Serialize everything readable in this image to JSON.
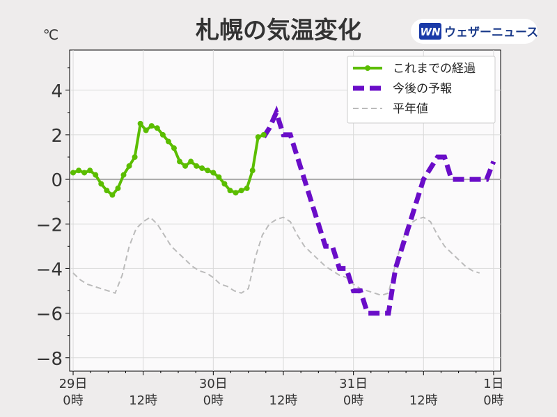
{
  "chart_data": {
    "type": "line",
    "title": "札幌の気温変化",
    "ylabel": "℃",
    "xlabel": "",
    "ylim": [
      -8.6,
      5.8
    ],
    "xlim": [
      -0.5,
      61
    ],
    "yticks": [
      4,
      2,
      0,
      -2,
      -4,
      -6,
      -8
    ],
    "ytick_labels": [
      "4",
      "2",
      "0",
      "−2",
      "−4",
      "−6",
      "−8"
    ],
    "xticks": [
      {
        "x": 0,
        "line1": "29日",
        "line2": "0時"
      },
      {
        "x": 10,
        "line1": "",
        "line2": "12時"
      },
      {
        "x": 20,
        "line1": "30日",
        "line2": "0時"
      },
      {
        "x": 30,
        "line1": "",
        "line2": "12時"
      },
      {
        "x": 40,
        "line1": "31日",
        "line2": "0時"
      },
      {
        "x": 50,
        "line1": "",
        "line2": "12時"
      },
      {
        "x": 60,
        "line1": "1日",
        "line2": "0時"
      }
    ],
    "grid": true,
    "legend_position": "top-right",
    "series": [
      {
        "name": "これまでの経過",
        "color": "#5bbd00",
        "style": "solid-markers",
        "points": [
          [
            0,
            0.3
          ],
          [
            0.8,
            0.4
          ],
          [
            1.6,
            0.3
          ],
          [
            2.4,
            0.4
          ],
          [
            3.2,
            0.2
          ],
          [
            4,
            -0.2
          ],
          [
            4.8,
            -0.5
          ],
          [
            5.6,
            -0.7
          ],
          [
            6.4,
            -0.4
          ],
          [
            7.2,
            0.2
          ],
          [
            8,
            0.6
          ],
          [
            8.8,
            1.0
          ],
          [
            9.6,
            2.5
          ],
          [
            10.4,
            2.2
          ],
          [
            11.2,
            2.4
          ],
          [
            12,
            2.3
          ],
          [
            12.8,
            2.0
          ],
          [
            13.6,
            1.7
          ],
          [
            14.4,
            1.4
          ],
          [
            15.2,
            0.8
          ],
          [
            16,
            0.6
          ],
          [
            16.8,
            0.8
          ],
          [
            17.6,
            0.6
          ],
          [
            18.4,
            0.5
          ],
          [
            19.2,
            0.4
          ],
          [
            20,
            0.3
          ],
          [
            20.8,
            0.1
          ],
          [
            21.6,
            -0.2
          ],
          [
            22.4,
            -0.5
          ],
          [
            23.2,
            -0.6
          ],
          [
            24,
            -0.5
          ],
          [
            24.8,
            -0.4
          ],
          [
            25.6,
            0.4
          ],
          [
            26.4,
            1.9
          ],
          [
            27.2,
            2.0
          ]
        ]
      },
      {
        "name": "今後の予報",
        "color": "#6a0dc8",
        "style": "dashed-thick",
        "points": [
          [
            27.2,
            1.9
          ],
          [
            28,
            2.3
          ],
          [
            29,
            3.0
          ],
          [
            30,
            2.0
          ],
          [
            31,
            2.0
          ],
          [
            32,
            1.0
          ],
          [
            33,
            0.0
          ],
          [
            34,
            -1.0
          ],
          [
            35,
            -2.0
          ],
          [
            36,
            -3.0
          ],
          [
            37,
            -3.0
          ],
          [
            38,
            -4.0
          ],
          [
            39,
            -4.0
          ],
          [
            40,
            -5.0
          ],
          [
            41,
            -5.0
          ],
          [
            42,
            -6.0
          ],
          [
            43,
            -6.0
          ],
          [
            44,
            -6.0
          ],
          [
            45,
            -6.0
          ],
          [
            46,
            -4.0
          ],
          [
            47,
            -3.0
          ],
          [
            48,
            -2.0
          ],
          [
            49,
            -1.0
          ],
          [
            50,
            0.0
          ],
          [
            51,
            0.5
          ],
          [
            52,
            1.0
          ],
          [
            53,
            1.0
          ],
          [
            54,
            0.0
          ],
          [
            55,
            0.0
          ],
          [
            56,
            0.0
          ],
          [
            57,
            0.0
          ],
          [
            58,
            0.0
          ],
          [
            59,
            0.0
          ],
          [
            60,
            0.8
          ]
        ]
      },
      {
        "name": "平年値",
        "color": "#bbbbbb",
        "style": "dashed-thin",
        "points": [
          [
            0,
            -4.2
          ],
          [
            1,
            -4.5
          ],
          [
            2,
            -4.7
          ],
          [
            3,
            -4.8
          ],
          [
            4,
            -4.9
          ],
          [
            5,
            -5.0
          ],
          [
            6,
            -5.1
          ],
          [
            7,
            -4.3
          ],
          [
            8,
            -3.0
          ],
          [
            9,
            -2.2
          ],
          [
            10,
            -1.9
          ],
          [
            11,
            -1.7
          ],
          [
            12,
            -2.0
          ],
          [
            13,
            -2.5
          ],
          [
            14,
            -3.0
          ],
          [
            15,
            -3.3
          ],
          [
            16,
            -3.6
          ],
          [
            17,
            -3.9
          ],
          [
            18,
            -4.1
          ],
          [
            19,
            -4.2
          ],
          [
            20,
            -4.4
          ],
          [
            21,
            -4.7
          ],
          [
            22,
            -4.8
          ],
          [
            23,
            -5.0
          ],
          [
            24,
            -5.1
          ],
          [
            25,
            -4.9
          ],
          [
            26,
            -3.5
          ],
          [
            27,
            -2.5
          ],
          [
            28,
            -2.0
          ],
          [
            29,
            -1.8
          ],
          [
            30,
            -1.7
          ],
          [
            31,
            -1.9
          ],
          [
            32,
            -2.5
          ],
          [
            33,
            -3.0
          ],
          [
            34,
            -3.3
          ],
          [
            35,
            -3.6
          ],
          [
            36,
            -3.9
          ],
          [
            37,
            -4.1
          ],
          [
            38,
            -4.3
          ],
          [
            39,
            -4.4
          ],
          [
            40,
            -4.7
          ],
          [
            41,
            -4.9
          ],
          [
            42,
            -5.0
          ],
          [
            43,
            -5.1
          ],
          [
            44,
            -5.2
          ],
          [
            45,
            -5.1
          ],
          [
            46,
            -3.8
          ],
          [
            47,
            -2.7
          ],
          [
            48,
            -2.0
          ],
          [
            49,
            -1.8
          ],
          [
            50,
            -1.7
          ],
          [
            51,
            -1.9
          ],
          [
            52,
            -2.5
          ],
          [
            53,
            -3.0
          ],
          [
            54,
            -3.3
          ],
          [
            55,
            -3.6
          ],
          [
            56,
            -3.9
          ],
          [
            57,
            -4.1
          ],
          [
            58,
            -4.2
          ]
        ]
      }
    ]
  },
  "brand": {
    "logo_text": "WN",
    "name": "ウェザーニュース"
  }
}
